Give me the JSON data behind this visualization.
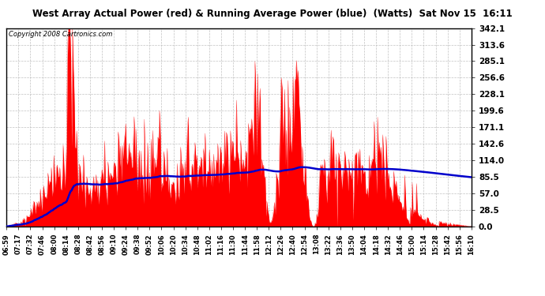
{
  "title": "West Array Actual Power (red) & Running Average Power (blue)  (Watts)  Sat Nov 15  16:11",
  "copyright": "Copyright 2008 Cartronics.com",
  "y_ticks": [
    0.0,
    28.5,
    57.0,
    85.5,
    114.0,
    142.6,
    171.1,
    199.6,
    228.1,
    256.6,
    285.1,
    313.6,
    342.1
  ],
  "x_labels": [
    "06:59",
    "07:17",
    "07:32",
    "07:46",
    "08:00",
    "08:14",
    "08:28",
    "08:42",
    "08:56",
    "09:10",
    "09:24",
    "09:38",
    "09:52",
    "10:06",
    "10:20",
    "10:34",
    "10:48",
    "11:02",
    "11:16",
    "11:30",
    "11:44",
    "11:58",
    "12:12",
    "12:26",
    "12:40",
    "12:54",
    "13:08",
    "13:22",
    "13:36",
    "13:50",
    "14:04",
    "14:18",
    "14:32",
    "14:46",
    "15:00",
    "15:14",
    "15:28",
    "15:42",
    "15:56",
    "16:10"
  ],
  "bg_color": "#ffffff",
  "plot_bg_color": "#ffffff",
  "grid_color": "#bbbbbb",
  "fill_color": "#ff0000",
  "line_color": "#0000cc",
  "title_color": "#000000",
  "border_color": "#000000",
  "ymax": 342.1,
  "ymin": 0.0,
  "figwidth": 6.9,
  "figheight": 3.75,
  "dpi": 100
}
